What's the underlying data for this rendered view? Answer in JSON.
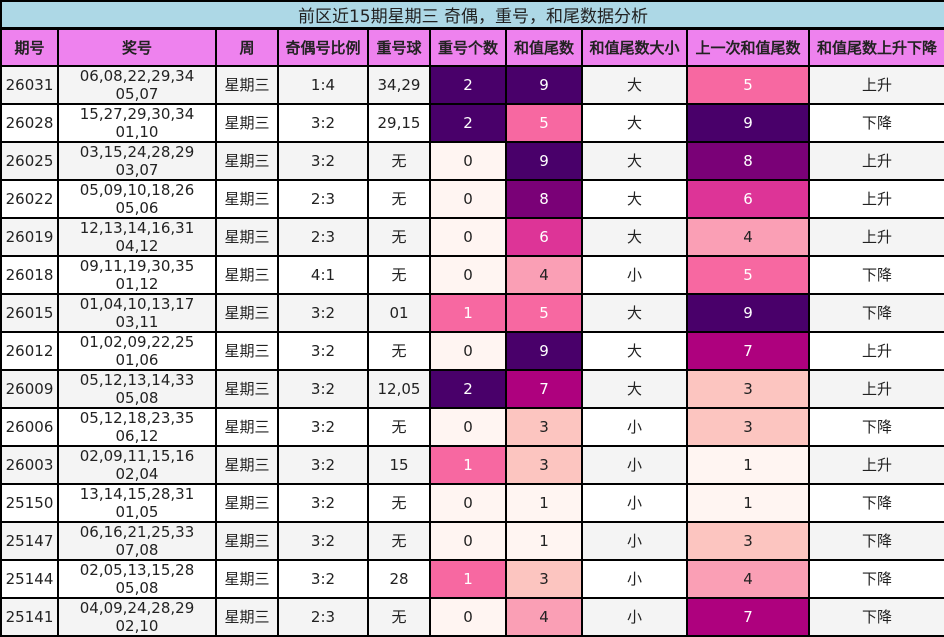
{
  "title": "前区近15期星期三 奇偶，重号，和尾数据分析",
  "headers": [
    "期号",
    "奖号",
    "周",
    "奇偶号比例",
    "重号球",
    "重号个数",
    "和值尾数",
    "和值尾数大小",
    "上一次和值尾数",
    "和值尾数上升下降"
  ],
  "colors": {
    "title_bg": "#add8e6",
    "header_bg": "#ee82ee",
    "scale": {
      "0": "#fff5f2",
      "1": "#fff5f2",
      "3": "#fcc5c0",
      "4": "#fa9fb5",
      "5": "#f768a1",
      "6": "#dd3497",
      "7": "#ae017e",
      "8": "#7a0177",
      "9": "#49006a"
    },
    "repeat_scale": {
      "0": "#fff5f2",
      "1": "#f768a1",
      "2": "#49006a"
    }
  },
  "rows": [
    [
      "26031",
      "06,08,22,29,34 05,07",
      "星期三",
      "1:4",
      "34,29",
      "2",
      "9",
      "大",
      "5",
      "上升"
    ],
    [
      "26028",
      "15,27,29,30,34 01,10",
      "星期三",
      "3:2",
      "29,15",
      "2",
      "5",
      "大",
      "9",
      "下降"
    ],
    [
      "26025",
      "03,15,24,28,29 03,07",
      "星期三",
      "3:2",
      "无",
      "0",
      "9",
      "大",
      "8",
      "上升"
    ],
    [
      "26022",
      "05,09,10,18,26 05,06",
      "星期三",
      "2:3",
      "无",
      "0",
      "8",
      "大",
      "6",
      "上升"
    ],
    [
      "26019",
      "12,13,14,16,31 04,12",
      "星期三",
      "2:3",
      "无",
      "0",
      "6",
      "大",
      "4",
      "上升"
    ],
    [
      "26018",
      "09,11,19,30,35 01,12",
      "星期三",
      "4:1",
      "无",
      "0",
      "4",
      "小",
      "5",
      "下降"
    ],
    [
      "26015",
      "01,04,10,13,17 03,11",
      "星期三",
      "3:2",
      "01",
      "1",
      "5",
      "大",
      "9",
      "下降"
    ],
    [
      "26012",
      "01,02,09,22,25 01,06",
      "星期三",
      "3:2",
      "无",
      "0",
      "9",
      "大",
      "7",
      "上升"
    ],
    [
      "26009",
      "05,12,13,14,33 05,08",
      "星期三",
      "3:2",
      "12,05",
      "2",
      "7",
      "大",
      "3",
      "上升"
    ],
    [
      "26006",
      "05,12,18,23,35 06,12",
      "星期三",
      "3:2",
      "无",
      "0",
      "3",
      "小",
      "3",
      "下降"
    ],
    [
      "26003",
      "02,09,11,15,16 02,04",
      "星期三",
      "3:2",
      "15",
      "1",
      "3",
      "小",
      "1",
      "上升"
    ],
    [
      "25150",
      "13,14,15,28,31 01,05",
      "星期三",
      "3:2",
      "无",
      "0",
      "1",
      "小",
      "1",
      "下降"
    ],
    [
      "25147",
      "06,16,21,25,33 07,08",
      "星期三",
      "3:2",
      "无",
      "0",
      "1",
      "小",
      "3",
      "下降"
    ],
    [
      "25144",
      "02,05,13,15,28 05,08",
      "星期三",
      "3:2",
      "28",
      "1",
      "3",
      "小",
      "4",
      "下降"
    ],
    [
      "25141",
      "04,09,24,28,29 02,10",
      "星期三",
      "2:3",
      "无",
      "0",
      "4",
      "小",
      "7",
      "下降"
    ]
  ]
}
